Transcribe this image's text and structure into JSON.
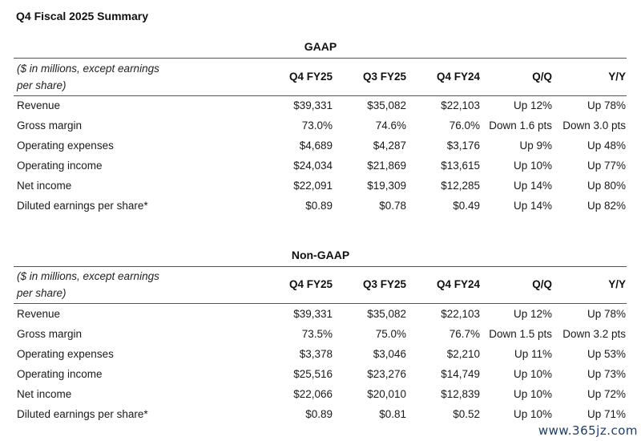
{
  "title": "Q4 Fiscal 2025 Summary",
  "columns": [
    "Q4 FY25",
    "Q3 FY25",
    "Q4 FY24",
    "Q/Q",
    "Y/Y"
  ],
  "units_note": "($ in millions, except earnings per share)",
  "units_note_line1": "($ in millions, except earnings",
  "units_note_line2": "per share)",
  "gaap": {
    "heading": "GAAP",
    "rows": [
      {
        "label": "Revenue",
        "q4fy25": "$39,331",
        "q3fy25": "$35,082",
        "q4fy24": "$22,103",
        "qq": "Up 12%",
        "yy": "Up 78%"
      },
      {
        "label": "Gross margin",
        "q4fy25": "73.0%",
        "q3fy25": "74.6%",
        "q4fy24": "76.0%",
        "qq": "Down 1.6 pts",
        "yy": "Down 3.0 pts"
      },
      {
        "label": "Operating expenses",
        "q4fy25": "$4,689",
        "q3fy25": "$4,287",
        "q4fy24": "$3,176",
        "qq": "Up 9%",
        "yy": "Up 48%"
      },
      {
        "label": "Operating income",
        "q4fy25": "$24,034",
        "q3fy25": "$21,869",
        "q4fy24": "$13,615",
        "qq": "Up 10%",
        "yy": "Up 77%"
      },
      {
        "label": "Net income",
        "q4fy25": "$22,091",
        "q3fy25": "$19,309",
        "q4fy24": "$12,285",
        "qq": "Up 14%",
        "yy": "Up 80%"
      },
      {
        "label": "Diluted earnings per share*",
        "q4fy25": "$0.89",
        "q3fy25": "$0.78",
        "q4fy24": "$0.49",
        "qq": "Up 14%",
        "yy": "Up 82%"
      }
    ]
  },
  "non_gaap": {
    "heading": "Non-GAAP",
    "rows": [
      {
        "label": "Revenue",
        "q4fy25": "$39,331",
        "q3fy25": "$35,082",
        "q4fy24": "$22,103",
        "qq": "Up 12%",
        "yy": "Up 78%"
      },
      {
        "label": "Gross margin",
        "q4fy25": "73.5%",
        "q3fy25": "75.0%",
        "q4fy24": "76.7%",
        "qq": "Down 1.5 pts",
        "yy": "Down 3.2 pts"
      },
      {
        "label": "Operating expenses",
        "q4fy25": "$3,378",
        "q3fy25": "$3,046",
        "q4fy24": "$2,210",
        "qq": "Up 11%",
        "yy": "Up 53%"
      },
      {
        "label": "Operating income",
        "q4fy25": "$25,516",
        "q3fy25": "$23,276",
        "q4fy24": "$14,749",
        "qq": "Up 10%",
        "yy": "Up 73%"
      },
      {
        "label": "Net income",
        "q4fy25": "$22,066",
        "q3fy25": "$20,010",
        "q4fy24": "$12,839",
        "qq": "Up 10%",
        "yy": "Up 72%"
      },
      {
        "label": "Diluted earnings per share*",
        "q4fy25": "$0.89",
        "q3fy25": "$0.81",
        "q4fy24": "$0.52",
        "qq": "Up 10%",
        "yy": "Up 71%"
      }
    ]
  },
  "watermark": "www.365jz.com"
}
